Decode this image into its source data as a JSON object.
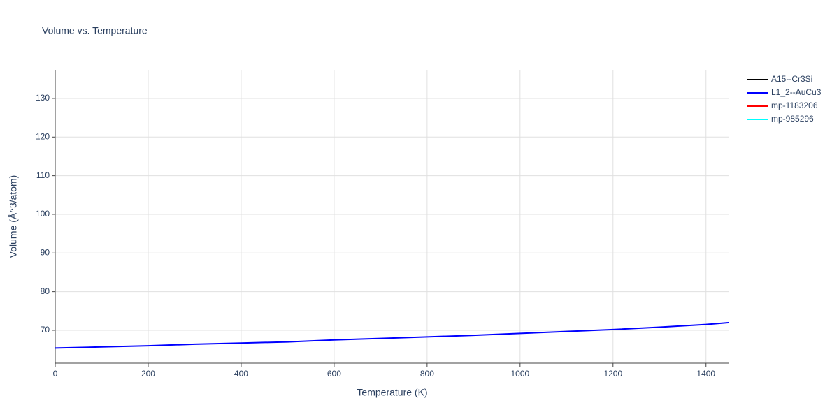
{
  "chart_data": {
    "type": "line",
    "title": "Volume vs. Temperature",
    "x_label": "Temperature (K)",
    "y_label": "Volume (Å^3/atom)",
    "x": [
      0,
      100,
      200,
      300,
      400,
      500,
      600,
      700,
      800,
      900,
      1000,
      1100,
      1200,
      1300,
      1400,
      1450
    ],
    "series": [
      {
        "name": "A15--Cr3Si",
        "color": "#000000",
        "values": [
          null,
          null,
          null,
          null,
          null,
          null,
          null,
          null,
          null,
          null,
          null,
          null,
          null,
          null,
          null,
          null
        ]
      },
      {
        "name": "L1_2--AuCu3",
        "color": "#0000ff",
        "values": [
          65.4,
          65.7,
          66.0,
          66.4,
          66.7,
          67.0,
          67.5,
          67.9,
          68.3,
          68.7,
          69.2,
          69.7,
          70.2,
          70.8,
          71.5,
          72.0
        ]
      },
      {
        "name": "mp-1183206",
        "color": "#ff0000",
        "values": [
          null,
          null,
          null,
          null,
          null,
          null,
          null,
          null,
          null,
          null,
          null,
          null,
          null,
          null,
          null,
          null
        ]
      },
      {
        "name": "mp-985296",
        "color": "#00ffff",
        "values": [
          null,
          null,
          null,
          null,
          null,
          null,
          null,
          null,
          null,
          null,
          null,
          null,
          null,
          null,
          null,
          null
        ]
      }
    ],
    "xlim": [
      0,
      1450
    ],
    "xticks": [
      0,
      200,
      400,
      600,
      800,
      1000,
      1200,
      1400
    ],
    "ylim": [
      61.5,
      137.4
    ],
    "yticks": [
      70,
      80,
      90,
      100,
      110,
      120,
      130
    ],
    "grid": true,
    "legend": "right"
  }
}
